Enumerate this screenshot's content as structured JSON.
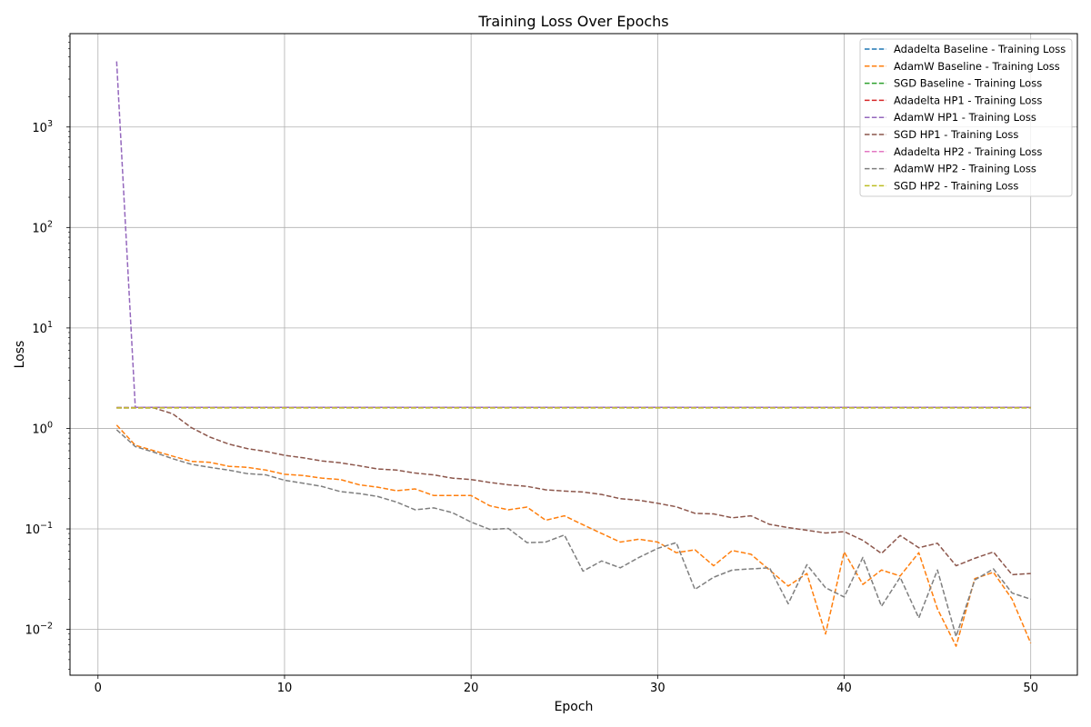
{
  "chart_data": {
    "type": "line",
    "title": "Training Loss Over Epochs",
    "xlabel": "Epoch",
    "ylabel": "Loss",
    "yscale": "log",
    "xlim": [
      -1.5,
      52.5
    ],
    "ylim": [
      0.0035,
      8500
    ],
    "grid": true,
    "legend_position": "top-right",
    "x_ticks": [
      {
        "value": 0,
        "label": "0"
      },
      {
        "value": 10,
        "label": "10"
      },
      {
        "value": 20,
        "label": "20"
      },
      {
        "value": 30,
        "label": "30"
      },
      {
        "value": 40,
        "label": "40"
      },
      {
        "value": 50,
        "label": "50"
      }
    ],
    "y_ticks": [
      {
        "value": 0.01,
        "base": "10",
        "exp": "−2"
      },
      {
        "value": 0.1,
        "base": "10",
        "exp": "−1"
      },
      {
        "value": 1,
        "base": "10",
        "exp": "0"
      },
      {
        "value": 10,
        "base": "10",
        "exp": "1"
      },
      {
        "value": 100,
        "base": "10",
        "exp": "2"
      },
      {
        "value": 1000,
        "base": "10",
        "exp": "3"
      }
    ],
    "series": [
      {
        "name": "Adadelta Baseline - Training Loss",
        "color": "#1f77b4",
        "style": "dashed",
        "values": [
          1.61,
          1.61,
          1.61,
          1.61,
          1.61,
          1.61,
          1.61,
          1.61,
          1.61,
          1.61,
          1.61,
          1.61,
          1.61,
          1.61,
          1.61,
          1.61,
          1.61,
          1.61,
          1.61,
          1.61,
          1.61,
          1.61,
          1.61,
          1.61,
          1.61,
          1.61,
          1.61,
          1.61,
          1.61,
          1.61,
          1.61,
          1.61,
          1.61,
          1.61,
          1.61,
          1.61,
          1.61,
          1.61,
          1.61,
          1.61,
          1.61,
          1.61,
          1.61,
          1.61,
          1.61,
          1.61,
          1.61,
          1.61,
          1.61,
          1.61
        ]
      },
      {
        "name": "AdamW Baseline - Training Loss",
        "color": "#ff7f0e",
        "style": "dashed",
        "values": [
          1.08,
          0.68,
          0.6,
          0.53,
          0.47,
          0.46,
          0.42,
          0.41,
          0.385,
          0.35,
          0.34,
          0.32,
          0.31,
          0.275,
          0.26,
          0.24,
          0.25,
          0.215,
          0.215,
          0.215,
          0.17,
          0.155,
          0.165,
          0.122,
          0.135,
          0.11,
          0.09,
          0.074,
          0.079,
          0.074,
          0.058,
          0.062,
          0.043,
          0.061,
          0.056,
          0.039,
          0.027,
          0.036,
          0.009,
          0.059,
          0.028,
          0.039,
          0.034,
          0.058,
          0.016,
          0.0068,
          0.032,
          0.037,
          0.02,
          0.0073
        ]
      },
      {
        "name": "SGD Baseline - Training Loss",
        "color": "#2ca02c",
        "style": "dashed",
        "values": [
          1.61,
          1.61,
          1.61,
          1.61,
          1.61,
          1.61,
          1.61,
          1.61,
          1.61,
          1.61,
          1.61,
          1.61,
          1.61,
          1.61,
          1.61,
          1.61,
          1.61,
          1.61,
          1.61,
          1.61,
          1.61,
          1.61,
          1.61,
          1.61,
          1.61,
          1.61,
          1.61,
          1.61,
          1.61,
          1.61,
          1.61,
          1.61,
          1.61,
          1.61,
          1.61,
          1.61,
          1.61,
          1.61,
          1.61,
          1.61,
          1.61,
          1.61,
          1.61,
          1.61,
          1.61,
          1.61,
          1.61,
          1.61,
          1.61,
          1.61
        ]
      },
      {
        "name": "Adadelta HP1 - Training Loss",
        "color": "#d62728",
        "style": "dashed",
        "values": [
          1.61,
          1.61,
          1.61,
          1.61,
          1.61,
          1.61,
          1.61,
          1.61,
          1.61,
          1.61,
          1.61,
          1.61,
          1.61,
          1.61,
          1.61,
          1.61,
          1.61,
          1.61,
          1.61,
          1.61,
          1.61,
          1.61,
          1.61,
          1.61,
          1.61,
          1.61,
          1.61,
          1.61,
          1.61,
          1.61,
          1.61,
          1.61,
          1.61,
          1.61,
          1.61,
          1.61,
          1.61,
          1.61,
          1.61,
          1.61,
          1.61,
          1.61,
          1.61,
          1.61,
          1.61,
          1.61,
          1.61,
          1.61,
          1.61,
          1.61
        ]
      },
      {
        "name": "AdamW HP1 - Training Loss",
        "color": "#9467bd",
        "style": "dashed",
        "values": [
          4500,
          1.62,
          1.62,
          1.62,
          1.62,
          1.62,
          1.62,
          1.62,
          1.62,
          1.62,
          1.62,
          1.62,
          1.62,
          1.62,
          1.62,
          1.62,
          1.62,
          1.62,
          1.62,
          1.62,
          1.62,
          1.62,
          1.62,
          1.62,
          1.62,
          1.62,
          1.62,
          1.62,
          1.62,
          1.62,
          1.62,
          1.62,
          1.62,
          1.62,
          1.62,
          1.62,
          1.62,
          1.62,
          1.62,
          1.62,
          1.62,
          1.62,
          1.62,
          1.62,
          1.62,
          1.62,
          1.62,
          1.62,
          1.62,
          1.62
        ]
      },
      {
        "name": "SGD HP1 - Training Loss",
        "color": "#8c564b",
        "style": "dashed",
        "values": [
          1.6,
          1.6,
          1.6,
          1.4,
          1.02,
          0.82,
          0.7,
          0.63,
          0.59,
          0.54,
          0.51,
          0.475,
          0.455,
          0.425,
          0.395,
          0.385,
          0.36,
          0.345,
          0.32,
          0.31,
          0.29,
          0.275,
          0.265,
          0.245,
          0.238,
          0.233,
          0.22,
          0.2,
          0.193,
          0.18,
          0.166,
          0.143,
          0.141,
          0.129,
          0.135,
          0.111,
          0.103,
          0.097,
          0.091,
          0.094,
          0.077,
          0.057,
          0.086,
          0.065,
          0.072,
          0.043,
          0.051,
          0.059,
          0.035,
          0.036
        ]
      },
      {
        "name": "Adadelta HP2 - Training Loss",
        "color": "#e377c2",
        "style": "dashed",
        "values": [
          1.61,
          1.61,
          1.61,
          1.61,
          1.61,
          1.61,
          1.61,
          1.61,
          1.61,
          1.61,
          1.61,
          1.61,
          1.61,
          1.61,
          1.61,
          1.61,
          1.61,
          1.61,
          1.61,
          1.61,
          1.61,
          1.61,
          1.61,
          1.61,
          1.61,
          1.61,
          1.61,
          1.61,
          1.61,
          1.61,
          1.61,
          1.61,
          1.61,
          1.61,
          1.61,
          1.61,
          1.61,
          1.61,
          1.61,
          1.61,
          1.61,
          1.61,
          1.61,
          1.61,
          1.61,
          1.61,
          1.61,
          1.61,
          1.61,
          1.61
        ]
      },
      {
        "name": "AdamW HP2 - Training Loss",
        "color": "#7f7f7f",
        "style": "dashed",
        "values": [
          0.97,
          0.66,
          0.58,
          0.5,
          0.44,
          0.41,
          0.385,
          0.355,
          0.345,
          0.305,
          0.285,
          0.265,
          0.235,
          0.225,
          0.21,
          0.185,
          0.155,
          0.162,
          0.145,
          0.117,
          0.099,
          0.101,
          0.073,
          0.074,
          0.087,
          0.038,
          0.048,
          0.041,
          0.052,
          0.064,
          0.073,
          0.025,
          0.033,
          0.039,
          0.04,
          0.041,
          0.018,
          0.044,
          0.026,
          0.021,
          0.052,
          0.017,
          0.033,
          0.013,
          0.039,
          0.0085,
          0.031,
          0.04,
          0.023,
          0.02
        ]
      },
      {
        "name": "SGD HP2 - Training Loss",
        "color": "#bcbd22",
        "style": "dashed",
        "values": [
          1.6,
          1.6,
          1.6,
          1.6,
          1.6,
          1.6,
          1.6,
          1.6,
          1.6,
          1.6,
          1.6,
          1.6,
          1.6,
          1.6,
          1.6,
          1.6,
          1.6,
          1.6,
          1.6,
          1.6,
          1.6,
          1.6,
          1.6,
          1.6,
          1.6,
          1.6,
          1.6,
          1.6,
          1.6,
          1.6,
          1.6,
          1.6,
          1.6,
          1.6,
          1.6,
          1.6,
          1.6,
          1.6,
          1.6,
          1.6,
          1.6,
          1.6,
          1.6,
          1.6,
          1.6,
          1.6,
          1.6,
          1.6,
          1.6,
          1.6
        ]
      }
    ]
  }
}
